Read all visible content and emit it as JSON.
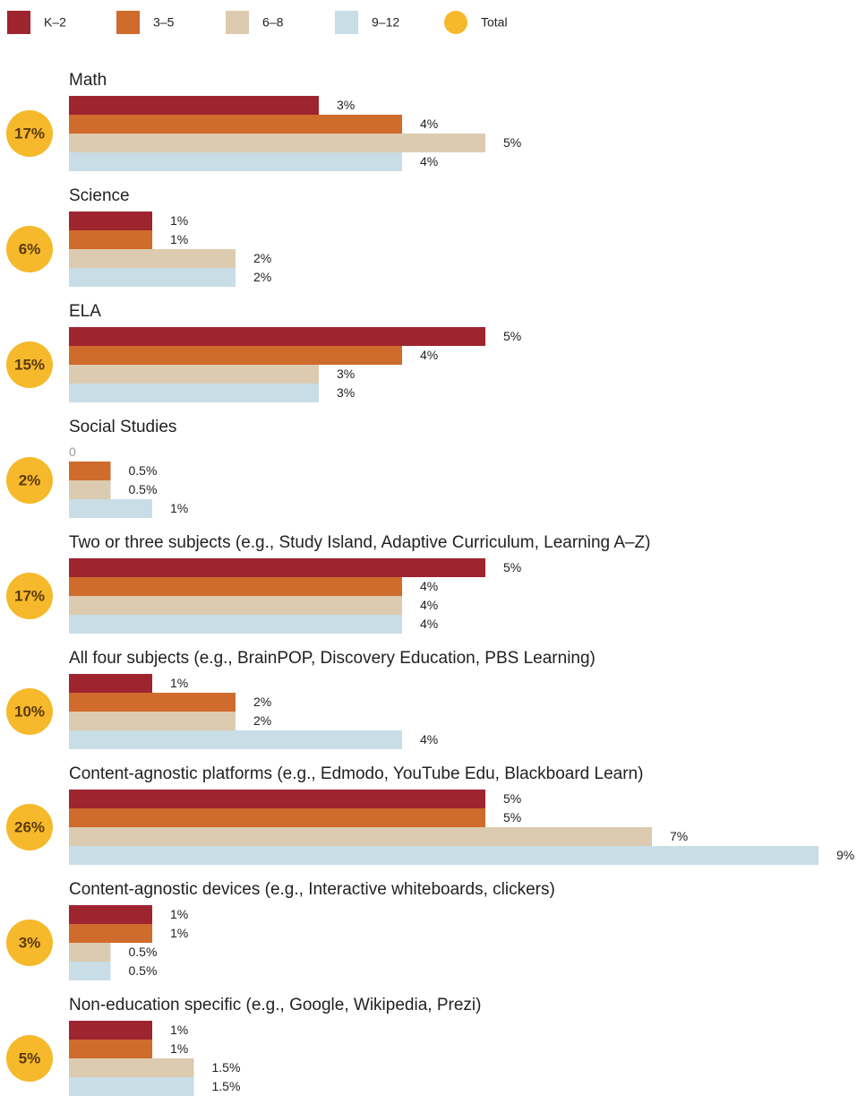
{
  "chart_data": {
    "type": "bar",
    "orientation": "horizontal",
    "categories": [
      "Math",
      "Science",
      "ELA",
      "Social Studies",
      "Two or three subjects (e.g., Study Island, Adaptive Curriculum, Learning A–Z)",
      "All four subjects (e.g., BrainPOP, Discovery Education, PBS Learning)",
      "Content-agnostic platforms (e.g., Edmodo, YouTube Edu, Blackboard Learn)",
      "Content-agnostic devices (e.g., Interactive whiteboards, clickers)",
      "Non-education specific (e.g., Google, Wikipedia, Prezi)"
    ],
    "series": [
      {
        "name": "K–2",
        "color": "#9e2430",
        "values": [
          3,
          1,
          5,
          0,
          5,
          1,
          5,
          1,
          1
        ],
        "value_labels": [
          "3%",
          "1%",
          "5%",
          "0",
          "5%",
          "1%",
          "5%",
          "1%",
          "1%"
        ]
      },
      {
        "name": "3–5",
        "color": "#cf6b2c",
        "values": [
          4,
          1,
          4,
          0.5,
          4,
          2,
          5,
          1,
          1
        ],
        "value_labels": [
          "4%",
          "1%",
          "4%",
          "0.5%",
          "4%",
          "2%",
          "5%",
          "1%",
          "1%"
        ]
      },
      {
        "name": "6–8",
        "color": "#dccbb0",
        "values": [
          5,
          2,
          3,
          0.5,
          4,
          2,
          7,
          0.5,
          1.5
        ],
        "value_labels": [
          "5%",
          "2%",
          "3%",
          "0.5%",
          "4%",
          "2%",
          "7%",
          "0.5%",
          "1.5%"
        ]
      },
      {
        "name": "9–12",
        "color": "#c8dde6",
        "values": [
          4,
          2,
          3,
          1,
          4,
          4,
          9,
          0.5,
          1.5
        ],
        "value_labels": [
          "4%",
          "2%",
          "3%",
          "1%",
          "4%",
          "4%",
          "9%",
          "0.5%",
          "1.5%"
        ]
      }
    ],
    "totals": {
      "name": "Total",
      "color": "#f6b92b",
      "values": [
        17,
        6,
        15,
        2,
        17,
        10,
        26,
        3,
        5
      ],
      "value_labels": [
        "17%",
        "6%",
        "15%",
        "2%",
        "17%",
        "10%",
        "26%",
        "3%",
        "5%"
      ]
    }
  }
}
